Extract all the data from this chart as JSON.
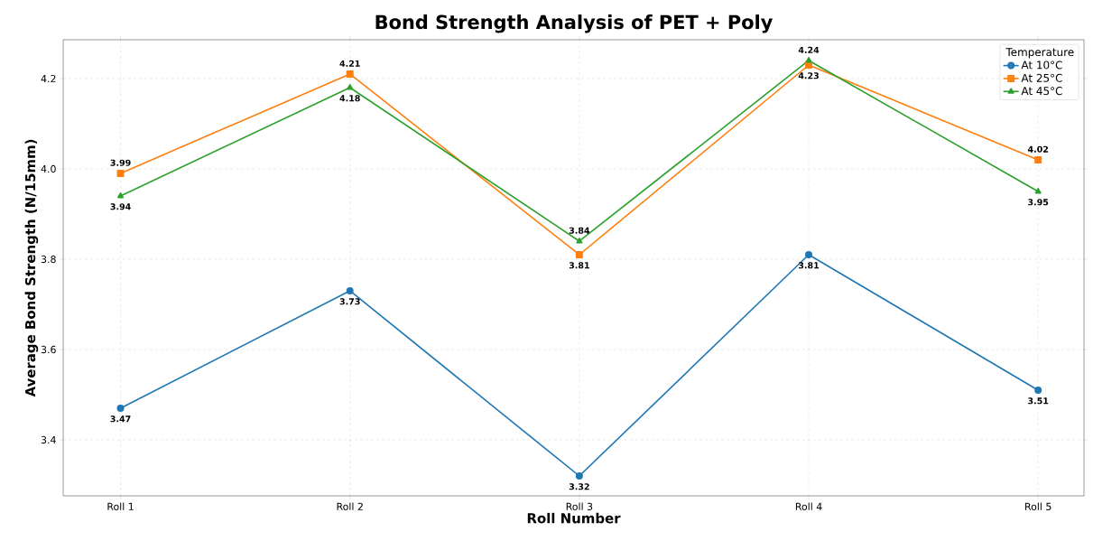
{
  "chart_data": {
    "type": "line",
    "title": "Bond Strength Analysis of PET + Poly",
    "xlabel": "Roll Number",
    "ylabel": "Average Bond Strength (N/15mm)",
    "legend_title": "Temperature",
    "categories": [
      "Roll 1",
      "Roll 2",
      "Roll 3",
      "Roll 4",
      "Roll 5"
    ],
    "series": [
      {
        "name": "At 10°C",
        "color": "#1f77b4",
        "marker": "circle",
        "values": [
          3.47,
          3.73,
          3.32,
          3.81,
          3.51
        ]
      },
      {
        "name": "At 25°C",
        "color": "#ff7f0e",
        "marker": "square",
        "values": [
          3.99,
          4.21,
          3.81,
          4.23,
          4.02
        ]
      },
      {
        "name": "At 45°C",
        "color": "#2ca02c",
        "marker": "triangle",
        "values": [
          3.94,
          4.18,
          3.84,
          4.24,
          3.95
        ]
      }
    ],
    "ylim": [
      3.276,
      4.286
    ],
    "yticks": [
      {
        "value": 3.4,
        "label": "3.4"
      },
      {
        "value": 3.6,
        "label": "3.6"
      },
      {
        "value": 3.8,
        "label": "3.8"
      },
      {
        "value": 4.0,
        "label": "4.0"
      },
      {
        "value": 4.2,
        "label": "4.2"
      }
    ],
    "grid": true,
    "legend": "top right",
    "data_labels": true,
    "line_style": "solid"
  }
}
